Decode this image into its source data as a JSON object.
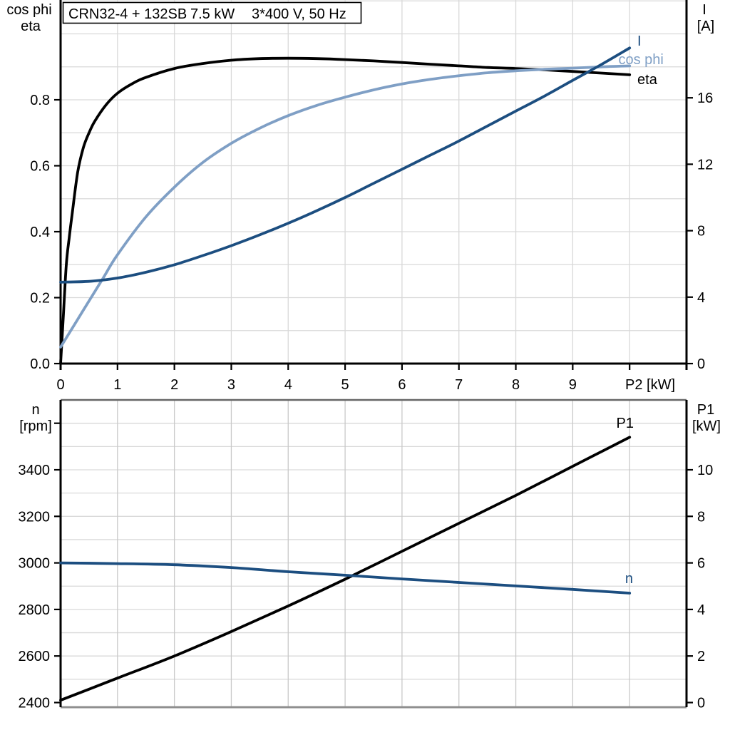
{
  "title": {
    "model": "CRN32-4 + 132SB",
    "power": "7.5 kW",
    "supply": "3*400 V, 50 Hz"
  },
  "colors": {
    "black": "#000000",
    "dark_blue": "#1c4e80",
    "light_blue": "#7f9fc5",
    "grid": "#d9d9d9",
    "grid_vertical_bottom": "#c9c9c9",
    "frame_top_bottom_chart": "#666666",
    "frame_bottom_bottom_chart": "#8f8f8f",
    "background": "#ffffff"
  },
  "chart_data": [
    {
      "type": "line",
      "position": "top",
      "x_axis": {
        "title": "P2 [kW]",
        "min": 0,
        "max": 11,
        "tick_values": [
          0,
          1,
          2,
          3,
          4,
          5,
          6,
          7,
          8,
          9
        ],
        "tick_labels": [
          "0",
          "1",
          "2",
          "3",
          "4",
          "5",
          "6",
          "7",
          "8",
          "9"
        ],
        "title_at": 10,
        "grid_step": 1
      },
      "left_axis": {
        "title_lines": [
          "cos phi",
          "eta"
        ],
        "min": 0,
        "max": 1.1,
        "tick_values": [
          0,
          0.2,
          0.4,
          0.6,
          0.8
        ],
        "tick_labels": [
          "0.0",
          "0.2",
          "0.4",
          "0.6",
          "0.8"
        ],
        "grid_step": 0.1
      },
      "right_axis": {
        "title_lines": [
          "I",
          "[A]"
        ],
        "min": 0,
        "max": 21.9,
        "tick_values": [
          0,
          4,
          8,
          12,
          16
        ],
        "tick_labels": [
          "0",
          "4",
          "8",
          "12",
          "16"
        ]
      },
      "series": [
        {
          "name": "eta",
          "axis": "left",
          "color_key": "black",
          "label": {
            "text": "eta",
            "x": 10.31,
            "v": 0.848
          },
          "points": [
            [
              0,
              0
            ],
            [
              0.05,
              0.15
            ],
            [
              0.1,
              0.3
            ],
            [
              0.15,
              0.38
            ],
            [
              0.2,
              0.45
            ],
            [
              0.3,
              0.58
            ],
            [
              0.4,
              0.655
            ],
            [
              0.5,
              0.7
            ],
            [
              0.6,
              0.735
            ],
            [
              0.8,
              0.785
            ],
            [
              1,
              0.82
            ],
            [
              1.25,
              0.848
            ],
            [
              1.5,
              0.868
            ],
            [
              2,
              0.895
            ],
            [
              2.5,
              0.91
            ],
            [
              3,
              0.92
            ],
            [
              3.5,
              0.925
            ],
            [
              4,
              0.926
            ],
            [
              4.5,
              0.925
            ],
            [
              5,
              0.922
            ],
            [
              5.5,
              0.918
            ],
            [
              6,
              0.913
            ],
            [
              6.5,
              0.908
            ],
            [
              7,
              0.903
            ],
            [
              7.5,
              0.898
            ],
            [
              8,
              0.895
            ],
            [
              8.5,
              0.891
            ],
            [
              9,
              0.886
            ],
            [
              9.5,
              0.881
            ],
            [
              10,
              0.876
            ]
          ]
        },
        {
          "name": "cos phi",
          "axis": "left",
          "color_key": "light_blue",
          "label": {
            "text": "cos phi",
            "x": 10.2,
            "v": 0.908
          },
          "points": [
            [
              0,
              0.05
            ],
            [
              0.25,
              0.12
            ],
            [
              0.5,
              0.19
            ],
            [
              0.75,
              0.26
            ],
            [
              1,
              0.33
            ],
            [
              1.5,
              0.445
            ],
            [
              2,
              0.535
            ],
            [
              2.5,
              0.61
            ],
            [
              3,
              0.668
            ],
            [
              3.5,
              0.714
            ],
            [
              4,
              0.752
            ],
            [
              4.5,
              0.783
            ],
            [
              5,
              0.808
            ],
            [
              5.5,
              0.83
            ],
            [
              6,
              0.848
            ],
            [
              6.5,
              0.862
            ],
            [
              7,
              0.873
            ],
            [
              7.5,
              0.882
            ],
            [
              8,
              0.888
            ],
            [
              8.5,
              0.8925
            ],
            [
              9,
              0.896
            ],
            [
              9.5,
              0.9
            ],
            [
              10,
              0.903
            ]
          ]
        },
        {
          "name": "I",
          "axis": "right",
          "color_key": "dark_blue",
          "label": {
            "text": "I",
            "x": 10.17,
            "v": 19.15
          },
          "points": [
            [
              0,
              4.9
            ],
            [
              0.5,
              4.95
            ],
            [
              1,
              5.15
            ],
            [
              1.5,
              5.5
            ],
            [
              2,
              5.95
            ],
            [
              2.5,
              6.5
            ],
            [
              3,
              7.1
            ],
            [
              3.5,
              7.75
            ],
            [
              4,
              8.45
            ],
            [
              4.5,
              9.2
            ],
            [
              5,
              10.0
            ],
            [
              5.5,
              10.85
            ],
            [
              6,
              11.7
            ],
            [
              6.5,
              12.55
            ],
            [
              7,
              13.4
            ],
            [
              7.5,
              14.3
            ],
            [
              8,
              15.2
            ],
            [
              8.5,
              16.1
            ],
            [
              9,
              17.05
            ],
            [
              9.5,
              18.0
            ],
            [
              10,
              19.0
            ]
          ]
        }
      ]
    },
    {
      "type": "line",
      "position": "bottom",
      "x_axis": {
        "title": "",
        "min": 0,
        "max": 11,
        "tick_values": [],
        "tick_labels": [],
        "grid_step": 1
      },
      "left_axis": {
        "title_lines": [
          "n",
          "[rpm]"
        ],
        "min": 2400,
        "max": 3700,
        "tick_values": [
          2400,
          2600,
          2800,
          3000,
          3200,
          3400,
          3600
        ],
        "tick_labels": [
          "2400",
          "2600",
          "2800",
          "3000",
          "3200",
          "3400",
          ""
        ],
        "grid_step": 100
      },
      "right_axis": {
        "title_lines": [
          "P1",
          "[kW]"
        ],
        "min": 0,
        "max": 13,
        "tick_values": [
          0,
          2,
          4,
          6,
          8,
          10
        ],
        "tick_labels": [
          "0",
          "2",
          "4",
          "6",
          "8",
          "10"
        ],
        "grid_step": 1
      },
      "series": [
        {
          "name": "P1",
          "axis": "right",
          "color_key": "black",
          "label": {
            "text": "P1",
            "x": 9.92,
            "v": 11.8
          },
          "points": [
            [
              0,
              0.1
            ],
            [
              1,
              1.05
            ],
            [
              2,
              2.0
            ],
            [
              3,
              3.05
            ],
            [
              4,
              4.15
            ],
            [
              5,
              5.3
            ],
            [
              6,
              6.5
            ],
            [
              7,
              7.7
            ],
            [
              8,
              8.9
            ],
            [
              9,
              10.15
            ],
            [
              10,
              11.4
            ]
          ]
        },
        {
          "name": "n",
          "axis": "left",
          "color_key": "dark_blue",
          "label": {
            "text": "n",
            "x": 9.99,
            "v": 2913
          },
          "points": [
            [
              0,
              3000
            ],
            [
              1,
              2997
            ],
            [
              2,
              2992
            ],
            [
              3,
              2980
            ],
            [
              4,
              2962
            ],
            [
              5,
              2947
            ],
            [
              6,
              2931
            ],
            [
              7,
              2916
            ],
            [
              8,
              2901
            ],
            [
              9,
              2886
            ],
            [
              10,
              2870
            ]
          ]
        }
      ]
    }
  ]
}
